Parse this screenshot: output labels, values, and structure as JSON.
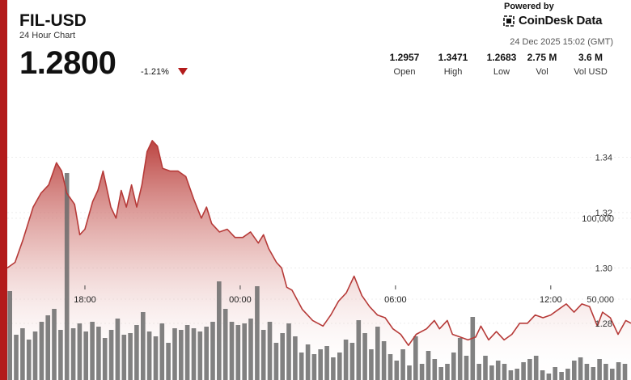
{
  "header": {
    "title": "FIL-USD",
    "subtitle": "24 Hour Chart",
    "price": "1.2800",
    "change": "-1.21%",
    "colors": {
      "accent": "#b31b1b",
      "line": "#b63a38",
      "volume": "#6b6b6b"
    }
  },
  "brand": {
    "powered_by": "Powered by",
    "name": "CoinDesk Data",
    "timestamp": "24 Dec 2025 15:02 (GMT)"
  },
  "stats": [
    {
      "value": "1.2957",
      "label": "Open"
    },
    {
      "value": "1.3471",
      "label": "High"
    },
    {
      "value": "1.2683",
      "label": "Low"
    },
    {
      "value": "2.75 M",
      "label": "Vol"
    },
    {
      "value": "3.6 M",
      "label": "Vol USD"
    }
  ],
  "chart_data": {
    "type": "line",
    "title": "",
    "price_axis": {
      "ticks": [
        "1.34",
        "1.32",
        "1.30",
        "1.28"
      ],
      "range": [
        1.2595,
        1.3676
      ]
    },
    "volume_axis": {
      "ticks": [
        "100,000",
        "50,000"
      ],
      "range": [
        0,
        135000
      ]
    },
    "x_ticks": [
      "18:00",
      "00:00",
      "06:00",
      "12:00"
    ],
    "x_range_hours": [
      15,
      39.1
    ],
    "price": {
      "x": [
        15.0,
        15.3,
        15.6,
        16.0,
        16.3,
        16.6,
        16.9,
        17.1,
        17.3,
        17.6,
        17.8,
        18.0,
        18.3,
        18.5,
        18.7,
        19.0,
        19.2,
        19.4,
        19.6,
        19.8,
        20.0,
        20.2,
        20.4,
        20.6,
        20.8,
        21.0,
        21.3,
        21.6,
        21.9,
        22.2,
        22.5,
        22.7,
        22.9,
        23.2,
        23.5,
        23.8,
        24.1,
        24.4,
        24.7,
        24.9,
        25.1,
        25.4,
        25.6,
        25.8,
        26.0,
        26.4,
        26.8,
        27.2,
        27.5,
        27.8,
        28.1,
        28.4,
        28.7,
        29.0,
        29.3,
        29.6,
        29.9,
        30.2,
        30.5,
        30.8,
        31.2,
        31.5,
        31.7,
        32.0,
        32.2,
        32.5,
        32.8,
        33.1,
        33.3,
        33.6,
        33.9,
        34.2,
        34.5,
        34.8,
        35.1,
        35.4,
        35.7,
        36.0,
        36.3,
        36.6,
        36.9,
        37.2,
        37.5,
        37.8,
        38.0,
        38.3,
        38.6,
        38.9,
        39.1
      ],
      "y": [
        1.3,
        1.302,
        1.31,
        1.322,
        1.327,
        1.33,
        1.338,
        1.335,
        1.327,
        1.323,
        1.312,
        1.314,
        1.324,
        1.328,
        1.335,
        1.322,
        1.318,
        1.328,
        1.322,
        1.33,
        1.322,
        1.33,
        1.342,
        1.346,
        1.344,
        1.336,
        1.335,
        1.335,
        1.333,
        1.325,
        1.318,
        1.322,
        1.316,
        1.313,
        1.314,
        1.311,
        1.311,
        1.313,
        1.309,
        1.312,
        1.307,
        1.302,
        1.3,
        1.293,
        1.292,
        1.285,
        1.281,
        1.279,
        1.283,
        1.288,
        1.291,
        1.297,
        1.29,
        1.286,
        1.283,
        1.282,
        1.278,
        1.276,
        1.272,
        1.276,
        1.278,
        1.281,
        1.278,
        1.281,
        1.276,
        1.275,
        1.274,
        1.275,
        1.279,
        1.274,
        1.277,
        1.274,
        1.276,
        1.28,
        1.28,
        1.283,
        1.282,
        1.283,
        1.285,
        1.287,
        1.284,
        1.287,
        1.286,
        1.279,
        1.284,
        1.282,
        1.276,
        1.281,
        1.28
      ]
    },
    "volume": {
      "x_start": 15.1,
      "x_step": 0.245,
      "values": [
        55000,
        28000,
        32000,
        25000,
        30000,
        36000,
        40000,
        44000,
        31000,
        128000,
        32000,
        35000,
        30000,
        36000,
        33000,
        26000,
        31000,
        38000,
        28000,
        29000,
        34000,
        42000,
        30000,
        27000,
        35000,
        23000,
        32000,
        31000,
        34000,
        32000,
        30000,
        33000,
        36000,
        61000,
        44000,
        36000,
        34000,
        35000,
        38000,
        58000,
        31000,
        36000,
        23000,
        29000,
        35000,
        27000,
        17000,
        22000,
        16000,
        19000,
        21000,
        14000,
        17000,
        25000,
        23000,
        37000,
        29000,
        19000,
        33000,
        24000,
        16000,
        12000,
        19000,
        9000,
        27000,
        10000,
        18000,
        13000,
        8000,
        10000,
        17000,
        26000,
        15000,
        39000,
        10000,
        15000,
        9000,
        12000,
        10000,
        6000,
        7000,
        11000,
        13000,
        15000,
        6000,
        4000,
        8000,
        5000,
        7000,
        12000,
        14000,
        10000,
        8000,
        13000,
        10000,
        7000,
        11000,
        10000
      ]
    }
  }
}
